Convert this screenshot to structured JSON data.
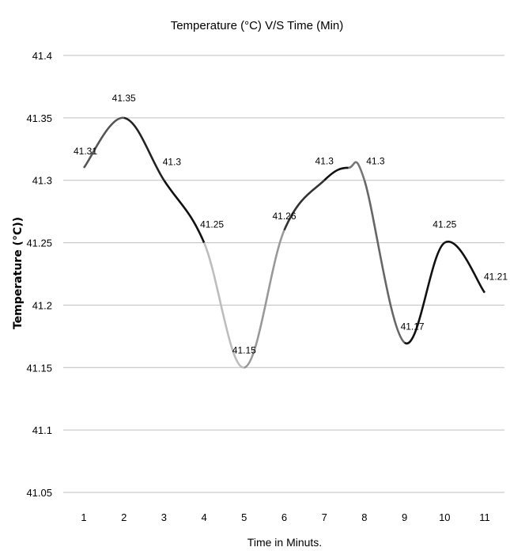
{
  "chart_data": {
    "type": "line",
    "title": "Temperature (°C) V/S Time (Min)",
    "xlabel": "Time in Minuts.",
    "ylabel": "Temperature (°C))",
    "categories": [
      "1",
      "2",
      "3",
      "4",
      "5",
      "6",
      "7",
      "8",
      "9",
      "10",
      "11"
    ],
    "ylim": [
      41.05,
      41.4
    ],
    "yticks": [
      "41.05",
      "41.1",
      "41.15",
      "41.2",
      "41.25",
      "41.3",
      "41.35",
      "41.4"
    ],
    "grid": true,
    "smooth": true,
    "series": [
      {
        "x": [
          1,
          2,
          3,
          4,
          5,
          6,
          7,
          7.6,
          8,
          9,
          10,
          11
        ],
        "values": [
          41.31,
          41.35,
          41.3,
          41.25,
          41.15,
          41.26,
          41.3,
          41.31,
          41.3,
          41.17,
          41.25,
          41.21
        ],
        "data_labels": [
          "41.31",
          "41.35",
          "41.3",
          "41.25",
          "41.15",
          "41.26",
          "41.3",
          "",
          "41.3",
          "41.17",
          "41.25",
          "41.21"
        ],
        "color": "#000000"
      }
    ]
  }
}
